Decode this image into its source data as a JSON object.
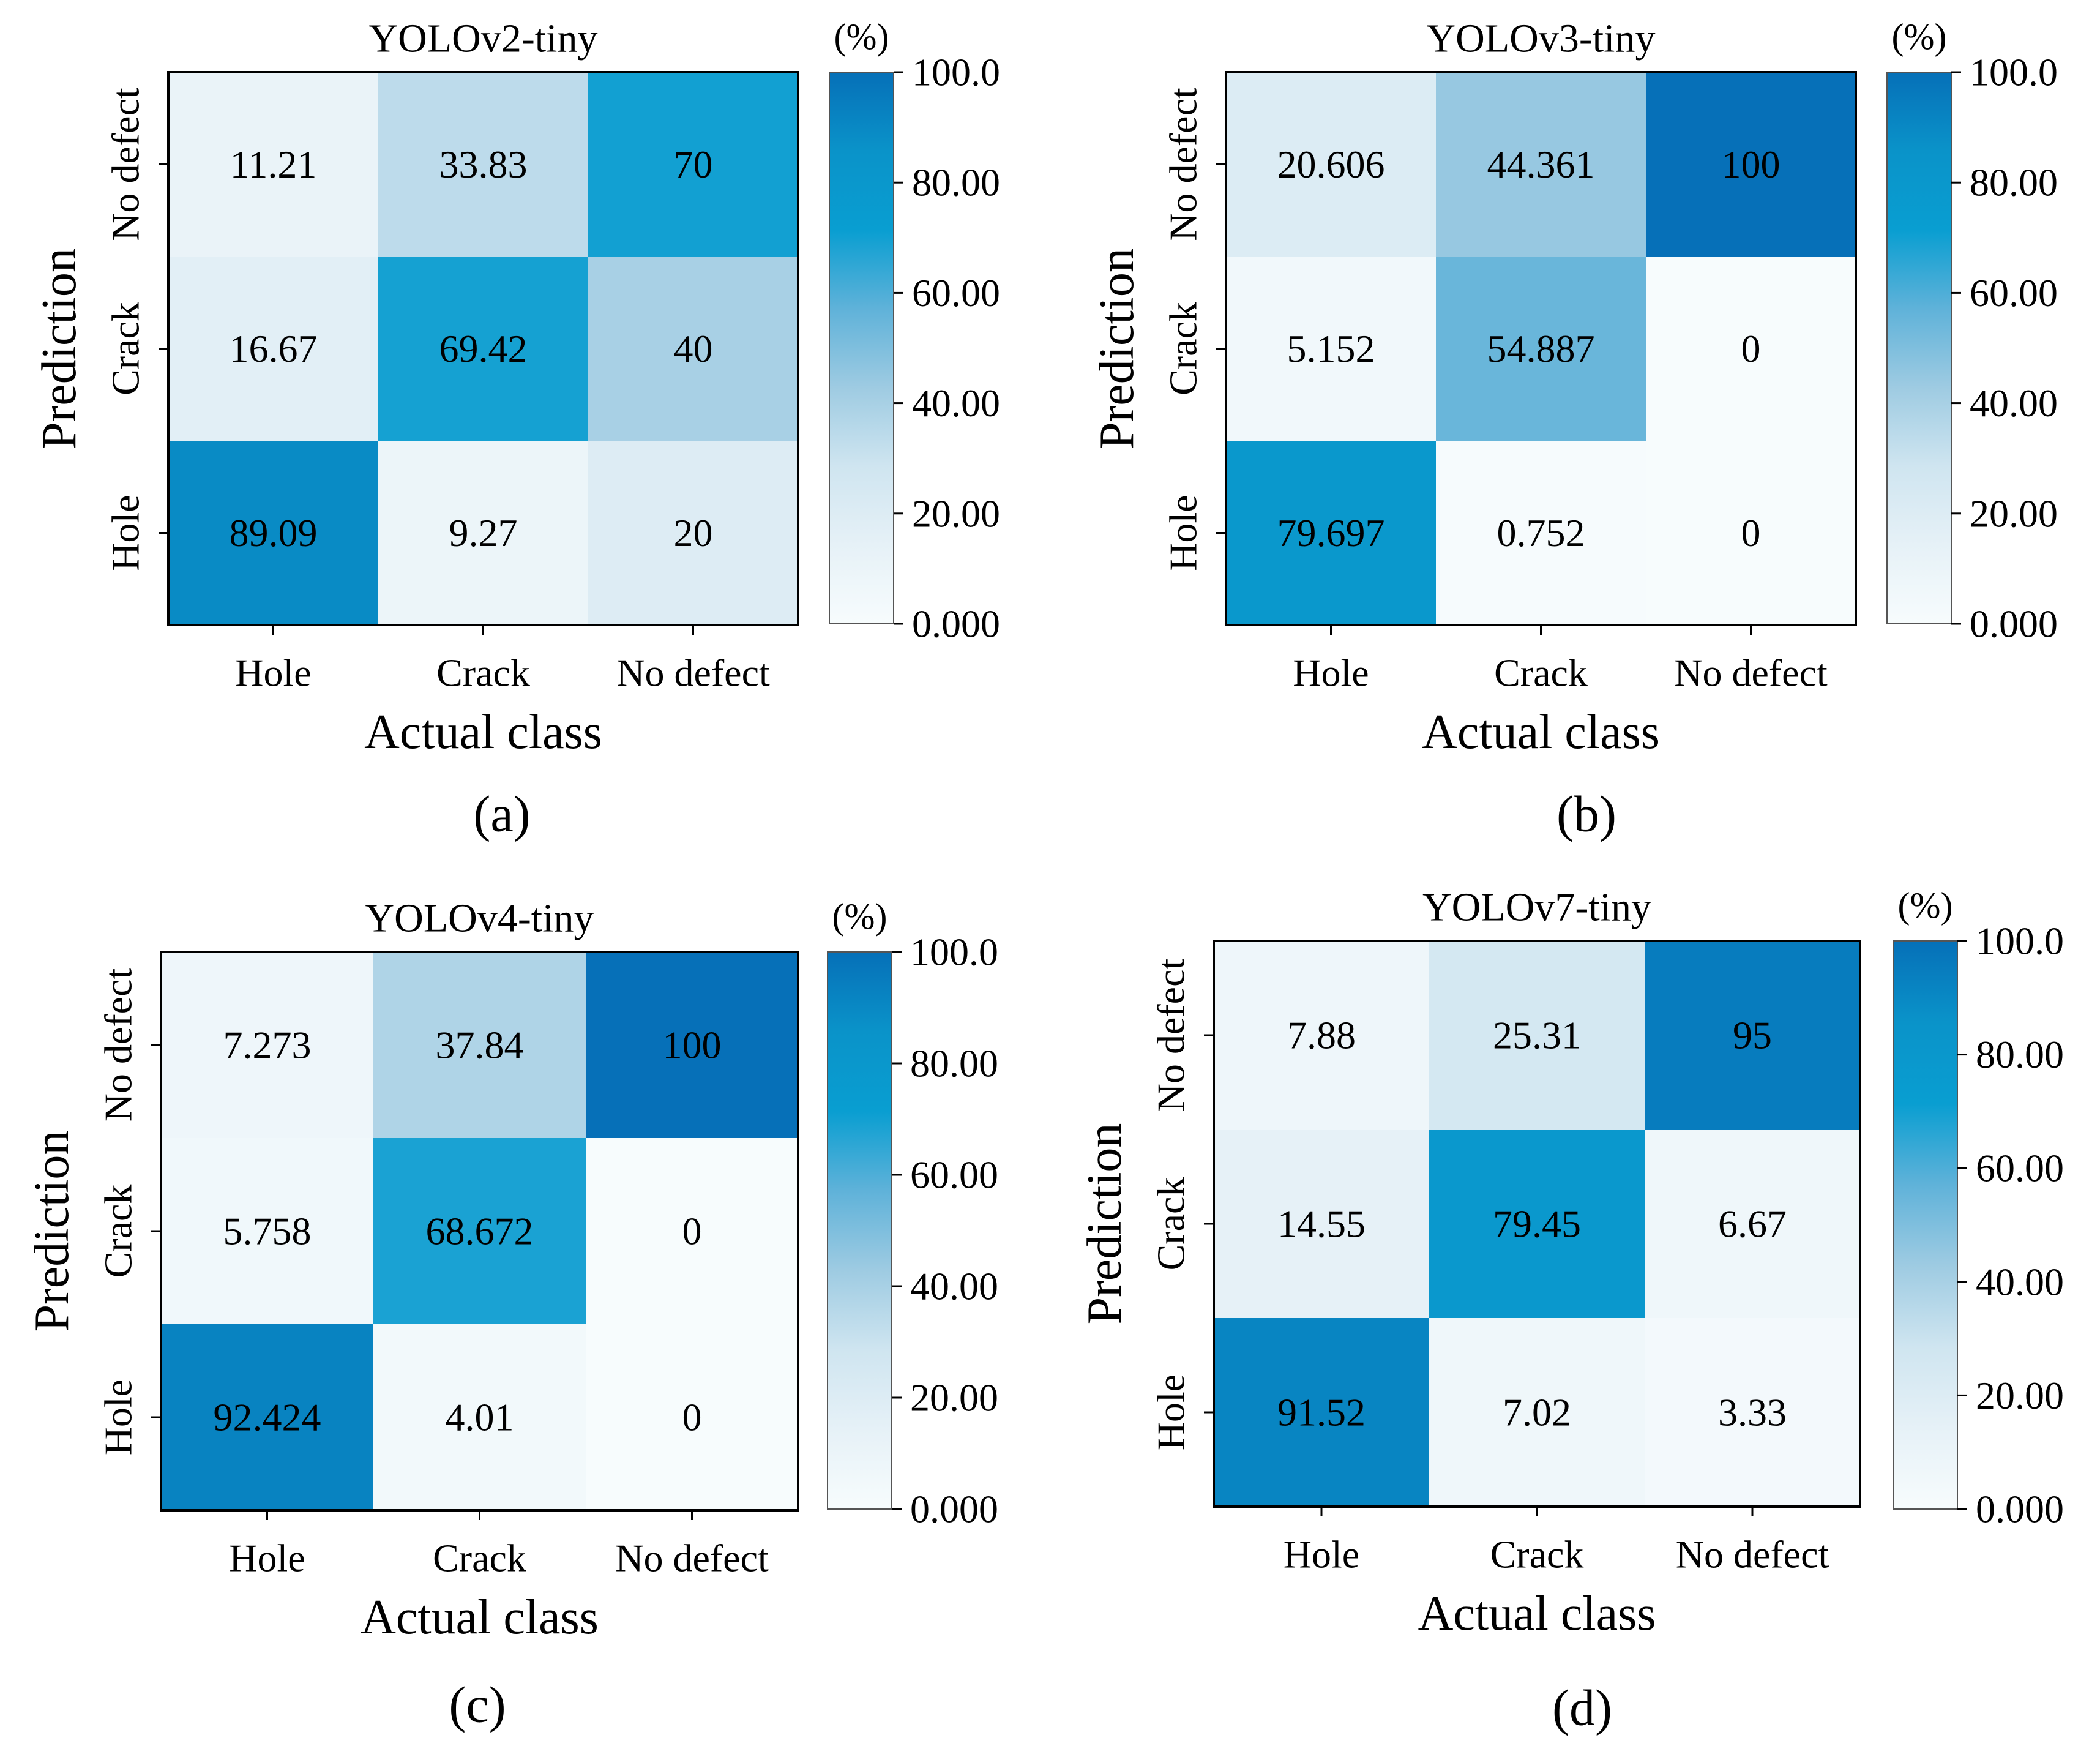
{
  "figure": {
    "colorbar_unit": "(%)",
    "colorbar_ticks": [
      "0.000",
      "20.00",
      "40.00",
      "60.00",
      "80.00",
      "100.0"
    ],
    "colorbar_tick_values": [
      0,
      20,
      40,
      60,
      80,
      100
    ],
    "colorbar_range": [
      0,
      100
    ],
    "colormap": [
      "#f7fcfd",
      "#e6f1f7",
      "#cfe5f0",
      "#9ecbe2",
      "#5fb2d9",
      "#099ed1",
      "#0a93c9",
      "#0670b8"
    ]
  },
  "chart_data": [
    {
      "type": "heatmap",
      "panel_label": "(a)",
      "title": "YOLOv2-tiny",
      "xlabel": "Actual class",
      "ylabel": "Prediction",
      "x_categories": [
        "Hole",
        "Crack",
        "No defect"
      ],
      "y_categories_top_to_bottom": [
        "No defect",
        "Crack",
        "Hole"
      ],
      "values": [
        [
          "11.21",
          "33.83",
          "70"
        ],
        [
          "16.67",
          "69.42",
          "40"
        ],
        [
          "89.09",
          "9.27",
          "20"
        ]
      ]
    },
    {
      "type": "heatmap",
      "panel_label": "(b)",
      "title": "YOLOv3-tiny",
      "xlabel": "Actual class",
      "ylabel": "Prediction",
      "x_categories": [
        "Hole",
        "Crack",
        "No defect"
      ],
      "y_categories_top_to_bottom": [
        "No defect",
        "Crack",
        "Hole"
      ],
      "values": [
        [
          "20.606",
          "44.361",
          "100"
        ],
        [
          "5.152",
          "54.887",
          "0"
        ],
        [
          "79.697",
          "0.752",
          "0"
        ]
      ]
    },
    {
      "type": "heatmap",
      "panel_label": "(c)",
      "title": "YOLOv4-tiny",
      "xlabel": "Actual class",
      "ylabel": "Prediction",
      "x_categories": [
        "Hole",
        "Crack",
        "No defect"
      ],
      "y_categories_top_to_bottom": [
        "No defect",
        "Crack",
        "Hole"
      ],
      "values": [
        [
          "7.273",
          "37.84",
          "100"
        ],
        [
          "5.758",
          "68.672",
          "0"
        ],
        [
          "92.424",
          "4.01",
          "0"
        ]
      ]
    },
    {
      "type": "heatmap",
      "panel_label": "(d)",
      "title": "YOLOv7-tiny",
      "xlabel": "Actual class",
      "ylabel": "Prediction",
      "x_categories": [
        "Hole",
        "Crack",
        "No defect"
      ],
      "y_categories_top_to_bottom": [
        "No defect",
        "Crack",
        "Hole"
      ],
      "values": [
        [
          "7.88",
          "25.31",
          "95"
        ],
        [
          "14.55",
          "79.45",
          "6.67"
        ],
        [
          "91.52",
          "7.02",
          "3.33"
        ]
      ]
    }
  ]
}
